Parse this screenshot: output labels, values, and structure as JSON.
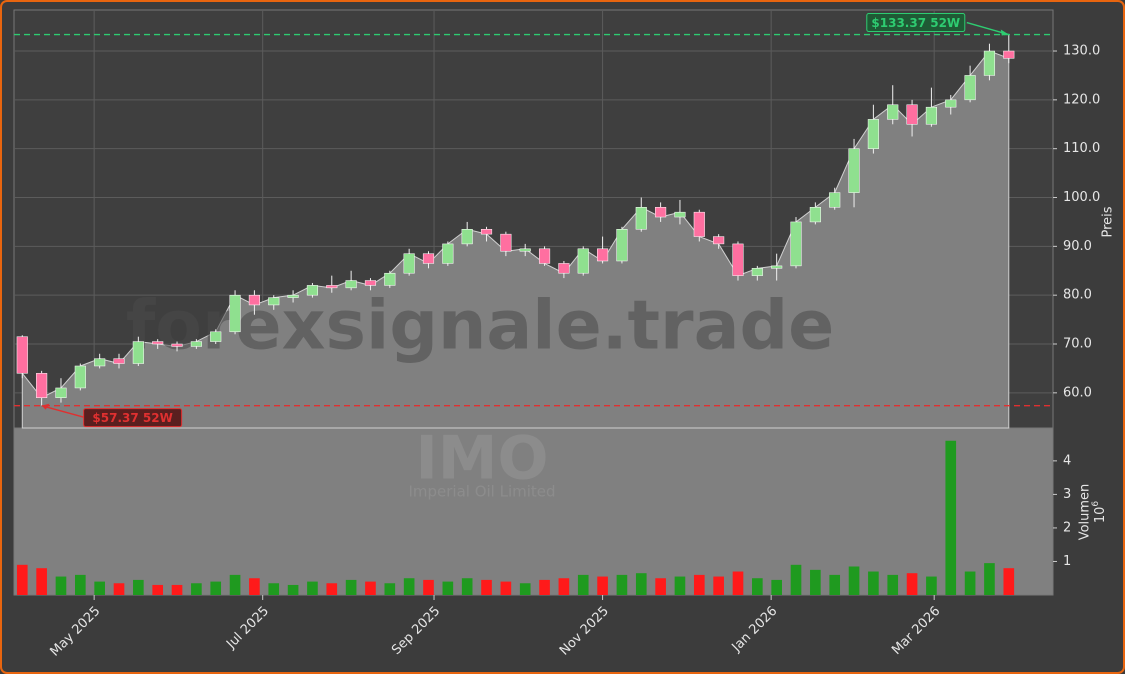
{
  "chart_data": {
    "type": "candlestick",
    "x": [
      3,
      10,
      17,
      24,
      31,
      38,
      45,
      52,
      59,
      66,
      73,
      80,
      87,
      94,
      101,
      108,
      115,
      122,
      129,
      136,
      143,
      150,
      157,
      164,
      171,
      178,
      185,
      192,
      199,
      206,
      213,
      220,
      227,
      234,
      241,
      248,
      255,
      262,
      269,
      276,
      283,
      290,
      297,
      304,
      311,
      318,
      325,
      332,
      339,
      346,
      353,
      360
    ],
    "open": [
      71.5,
      64,
      59,
      61,
      65.5,
      67,
      66,
      70.5,
      70,
      69.5,
      70.5,
      72.5,
      80,
      78,
      79.5,
      80,
      82,
      81.5,
      83,
      82,
      84.5,
      88.5,
      86.5,
      90.5,
      93.5,
      92.5,
      89,
      89.5,
      86.5,
      84.5,
      89.5,
      87,
      93.5,
      98,
      96,
      97,
      92,
      90.5,
      84,
      85.5,
      86,
      95,
      98,
      101,
      110,
      116,
      119,
      115,
      118.5,
      120,
      125,
      130
    ],
    "high": [
      71.8,
      64.5,
      63,
      66,
      68,
      68,
      71.5,
      71,
      70.5,
      71,
      73,
      81,
      81,
      80,
      81,
      82.5,
      84,
      85,
      83.5,
      85,
      89.5,
      89,
      91,
      95,
      94,
      93,
      90.5,
      90,
      87,
      90,
      92,
      94,
      100,
      99,
      99.5,
      97.5,
      92.5,
      91,
      86,
      88.5,
      96,
      99,
      102,
      112,
      119,
      123,
      120,
      122.5,
      121,
      127,
      131.5,
      133.37
    ],
    "low": [
      63,
      57.37,
      58,
      60.5,
      65,
      65,
      65.5,
      69,
      68.5,
      69,
      70,
      72,
      76,
      77,
      78.5,
      79.5,
      80.5,
      81,
      81,
      81.5,
      84,
      85.5,
      86,
      90,
      91,
      88,
      88,
      86,
      83.5,
      84,
      86.5,
      86.5,
      93,
      95,
      94.5,
      91,
      89.5,
      83,
      83,
      83,
      85.5,
      94.5,
      97.5,
      98,
      109,
      115,
      112.5,
      114.5,
      117,
      119.5,
      124,
      127.5
    ],
    "close": [
      64,
      59,
      61,
      65.5,
      67,
      66,
      70.5,
      70,
      69.5,
      70.5,
      72.5,
      80,
      78,
      79.5,
      80,
      82,
      81.5,
      83,
      82,
      84.5,
      88.5,
      86.5,
      90.5,
      93.5,
      92.5,
      89,
      89.5,
      86.5,
      84.5,
      89.5,
      87,
      93.5,
      98,
      96,
      97,
      92,
      90.5,
      84,
      85.5,
      86,
      95,
      98,
      101,
      110,
      116,
      119,
      115,
      118.5,
      120,
      125,
      130,
      128.5
    ],
    "xlim": [
      0,
      376
    ],
    "xticks": [
      {
        "value": 29,
        "label": "May 2025"
      },
      {
        "value": 90,
        "label": "Jul 2025"
      },
      {
        "value": 152,
        "label": "Sep 2025"
      },
      {
        "value": 213,
        "label": "Nov 2025"
      },
      {
        "value": 274,
        "label": "Jan 2026"
      },
      {
        "value": 333,
        "label": "Mar 2026"
      }
    ],
    "ylim": [
      52.8,
      138.4
    ],
    "yticks": [
      {
        "value": 60,
        "label": "60.0"
      },
      {
        "value": 70,
        "label": "70.0"
      },
      {
        "value": 80,
        "label": "80.0"
      },
      {
        "value": 90,
        "label": "90.0"
      },
      {
        "value": 100,
        "label": "100.0"
      },
      {
        "value": 110,
        "label": "110.0"
      },
      {
        "value": 120,
        "label": "120.0"
      },
      {
        "value": 130,
        "label": "130.0"
      }
    ],
    "ylabel": "Preis",
    "grid": true,
    "up_color": "#8fe08f",
    "down_color": "#ff6fa0",
    "area_color": "#808080",
    "annotations": [
      {
        "x": 360,
        "value": 133.37,
        "label": "$133.37 52W",
        "color": "#2ecc71"
      },
      {
        "x": 10,
        "value": 57.37,
        "label": "$57.37 52W",
        "color": "#e03030"
      }
    ],
    "watermark": "forexsignale.trade",
    "symbol": "IMO",
    "company": "Imperial Oil Limited",
    "volume": {
      "values": [
        0.9,
        0.8,
        0.55,
        0.6,
        0.4,
        0.35,
        0.45,
        0.3,
        0.3,
        0.35,
        0.4,
        0.6,
        0.5,
        0.35,
        0.3,
        0.4,
        0.35,
        0.45,
        0.4,
        0.35,
        0.5,
        0.45,
        0.4,
        0.5,
        0.45,
        0.4,
        0.35,
        0.45,
        0.5,
        0.6,
        0.55,
        0.6,
        0.65,
        0.5,
        0.55,
        0.6,
        0.55,
        0.7,
        0.5,
        0.45,
        0.9,
        0.75,
        0.6,
        0.85,
        0.7,
        0.6,
        0.65,
        0.55,
        4.6,
        0.7,
        0.95,
        0.8
      ],
      "ylim": [
        0,
        4.98
      ],
      "yticks": [
        1,
        2,
        3,
        4
      ],
      "ylabel": "Volumen",
      "multiplier": {
        "base": "10",
        "exponent": "6"
      },
      "up_color": "#1f9a1f",
      "down_color": "#ff1a1a"
    }
  }
}
